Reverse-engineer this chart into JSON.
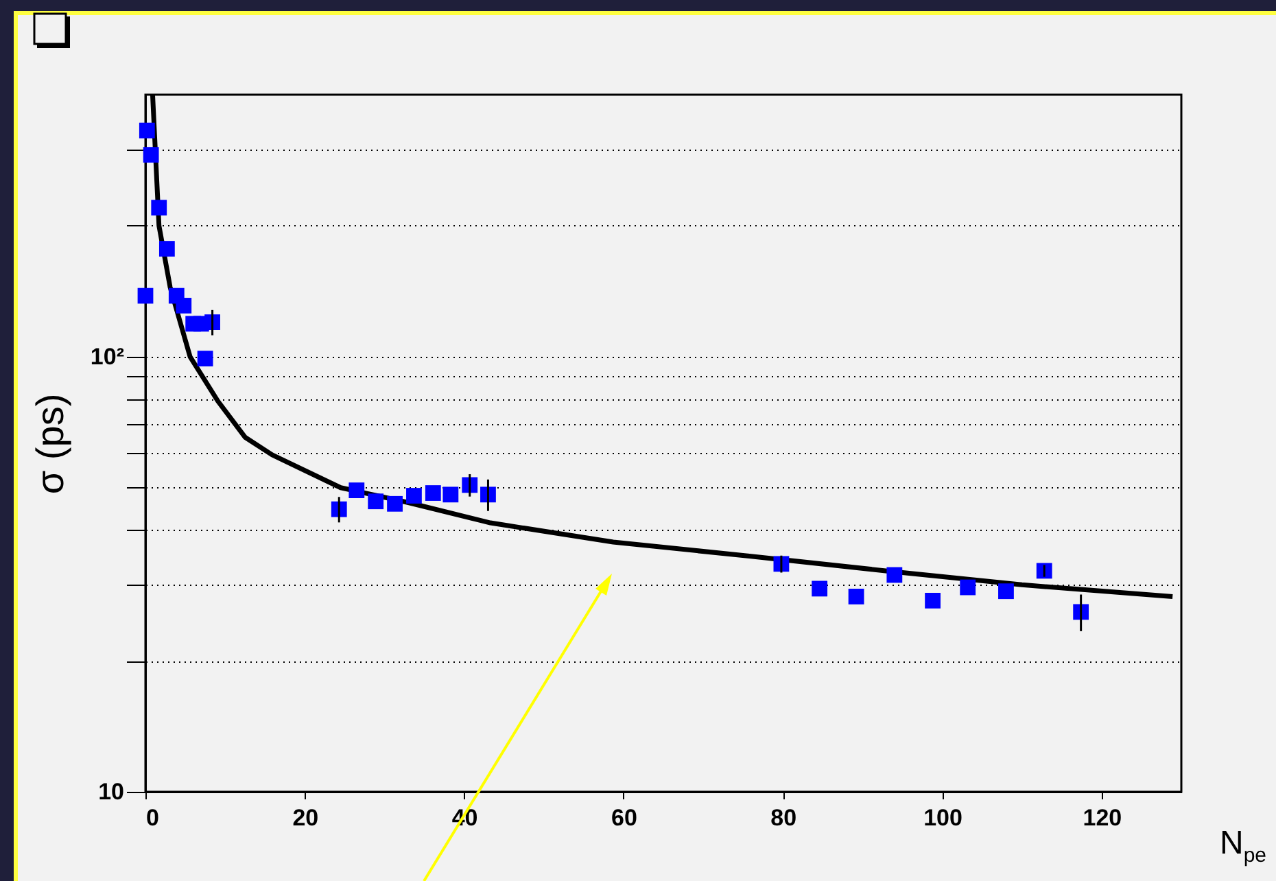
{
  "chart_data": {
    "type": "scatter",
    "ylabel": "σ (ps)",
    "xlabel": "N$_{pe}$",
    "xlim": [
      0,
      130
    ],
    "xticks": [
      0,
      20,
      40,
      60,
      80,
      100,
      120
    ],
    "ylim": [
      10,
      400
    ],
    "yticks": [
      10,
      {
        "value": 20,
        "label": null
      },
      {
        "value": 30,
        "label": null
      },
      {
        "value": 40,
        "label": null
      },
      {
        "value": 50,
        "label": null
      },
      {
        "value": 60,
        "label": null
      },
      {
        "value": 70,
        "label": null
      },
      {
        "value": 80,
        "label": null
      },
      {
        "value": 90,
        "label": null
      },
      {
        "value": 100,
        "label": "10²"
      },
      {
        "value": 200,
        "label": null
      },
      {
        "value": 300,
        "label": null
      }
    ],
    "log": "y",
    "grid": "y",
    "series": [
      {
        "color": "#0000ff",
        "marker": "square",
        "x": [
          0,
          0.2,
          0.7,
          1.7,
          2.7,
          3.9,
          4.8,
          6.0,
          7.0,
          7.5,
          8.4,
          24.3,
          26.5,
          28.9,
          31.3,
          33.7,
          36.1,
          38.3,
          40.7,
          43.0,
          79.8,
          84.6,
          89.2,
          94.0,
          98.8,
          103.2,
          108.0,
          112.8,
          117.4
        ],
        "values": [
          138,
          331,
          291,
          220,
          177,
          138,
          131,
          119,
          119,
          99,
          120,
          44.6,
          49.3,
          46.5,
          45.9,
          47.9,
          48.6,
          48.2,
          50.7,
          48.2,
          33.4,
          29.3,
          28.1,
          31.5,
          27.5,
          29.5,
          28.9,
          32.2,
          25.9
        ],
        "errors": [
          null,
          null,
          null,
          null,
          null,
          null,
          null,
          null,
          null,
          null,
          8,
          3,
          null,
          null,
          null,
          null,
          null,
          null,
          3,
          4,
          1.5,
          null,
          null,
          null,
          null,
          null,
          null,
          1,
          2.5
        ]
      },
      {
        "type": "line",
        "marker": "none",
        "color": "#000000",
        "x": [
          0.9,
          1.7,
          3.1,
          5.6,
          9.1,
          12.5,
          15.9,
          24.5,
          33.0,
          43.3,
          58.7,
          75.8,
          92.9,
          110,
          128.9
        ],
        "values": [
          400,
          200,
          144.5,
          100,
          79,
          65.3,
          59.5,
          50,
          46.2,
          41.5,
          37.5,
          34.8,
          32.2,
          29.9,
          28.1
        ]
      }
    ]
  }
}
